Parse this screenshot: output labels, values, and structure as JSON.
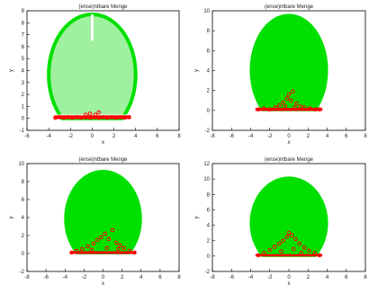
{
  "figure": {
    "panel_count": 4
  },
  "colors": {
    "envelope": "#00e000",
    "points": "#ff0000",
    "hollow_markers": "#ffffff",
    "axes": "#000000"
  },
  "chart_data": [
    {
      "type": "scatter",
      "title": "(ense)ntbare Menge",
      "xlabel": "x",
      "ylabel": "y",
      "xlim": [
        -6,
        8
      ],
      "ylim": [
        -1,
        9
      ],
      "xticks": [
        -6,
        -4,
        -2,
        0,
        2,
        4,
        6,
        8
      ],
      "yticks": [
        -1,
        0,
        1,
        2,
        3,
        4,
        5,
        6,
        7,
        8,
        9
      ],
      "grid": false,
      "envelope": {
        "fill": "hollow-markers",
        "x_min": -4,
        "x_max": 4,
        "y_base": 0,
        "y_max": 8.7
      },
      "notes_visible": "white vertical gap near x=0 from y≈6.5 to 8.7",
      "series": [
        {
          "points": [
            [
              -3.4,
              0.05
            ],
            [
              -3,
              0.1
            ],
            [
              -2.6,
              0.05
            ],
            [
              -2.2,
              0.1
            ],
            [
              -1.8,
              0.05
            ],
            [
              -1.4,
              0.1
            ],
            [
              -1,
              0.05
            ],
            [
              -0.6,
              0.1
            ],
            [
              -0.2,
              0.05
            ],
            [
              0.2,
              0.1
            ],
            [
              0.6,
              0.05
            ],
            [
              1,
              0.1
            ],
            [
              1.4,
              0.05
            ],
            [
              1.8,
              0.1
            ],
            [
              2.2,
              0.05
            ],
            [
              2.6,
              0.1
            ],
            [
              3,
              0.05
            ],
            [
              3.4,
              0.1
            ],
            [
              -0.2,
              0.4
            ],
            [
              0.3,
              0.3
            ],
            [
              0.6,
              0.5
            ],
            [
              -0.6,
              0.3
            ]
          ]
        }
      ]
    },
    {
      "type": "scatter",
      "title": "(ense)ntbare Menge",
      "xlabel": "x",
      "ylabel": "y",
      "xlim": [
        -8,
        8
      ],
      "ylim": [
        -2,
        10
      ],
      "xticks": [
        -8,
        -6,
        -4,
        -2,
        0,
        2,
        4,
        6,
        8
      ],
      "yticks": [
        -2,
        0,
        2,
        4,
        6,
        8,
        10
      ],
      "grid": false,
      "envelope": {
        "fill": "solid",
        "x_min": -4,
        "x_max": 4,
        "y_base": 0,
        "y_max": 9.6
      },
      "series": [
        {
          "points": [
            [
              -3.2,
              0.1
            ],
            [
              -2.6,
              0.2
            ],
            [
              -2,
              0.1
            ],
            [
              -1.4,
              0.3
            ],
            [
              -1,
              0.5
            ],
            [
              -0.6,
              0.8
            ],
            [
              -0.2,
              1.2
            ],
            [
              0,
              1.6
            ],
            [
              0.2,
              1.0
            ],
            [
              0.4,
              1.9
            ],
            [
              0.8,
              0.7
            ],
            [
              1.2,
              0.4
            ],
            [
              1.6,
              0.3
            ],
            [
              2.2,
              0.2
            ],
            [
              2.8,
              0.1
            ],
            [
              3.2,
              0.1
            ],
            [
              -0.4,
              0.4
            ],
            [
              0.6,
              0.3
            ]
          ]
        }
      ]
    },
    {
      "type": "scatter",
      "title": "(ense)ntbare Menge",
      "xlabel": "x",
      "ylabel": "y",
      "xlim": [
        -8,
        8
      ],
      "ylim": [
        -2,
        10
      ],
      "xticks": [
        -8,
        -6,
        -4,
        -2,
        0,
        2,
        4,
        6,
        8
      ],
      "yticks": [
        -2,
        0,
        2,
        4,
        6,
        8,
        10
      ],
      "grid": false,
      "envelope": {
        "fill": "solid",
        "x_min": -4,
        "x_max": 4,
        "y_base": 0,
        "y_max": 9.2
      },
      "series": [
        {
          "points": [
            [
              -3.3,
              0.1
            ],
            [
              -2.8,
              0.3
            ],
            [
              -2.2,
              0.5
            ],
            [
              -1.6,
              0.8
            ],
            [
              -1,
              1.1
            ],
            [
              -0.6,
              1.5
            ],
            [
              -0.2,
              1.8
            ],
            [
              0.2,
              2.2
            ],
            [
              0.6,
              1.6
            ],
            [
              1,
              2.6
            ],
            [
              1.4,
              1.2
            ],
            [
              1.8,
              0.9
            ],
            [
              2.2,
              0.6
            ],
            [
              2.8,
              0.3
            ],
            [
              3.3,
              0.1
            ],
            [
              -1.2,
              0.4
            ],
            [
              0.4,
              0.6
            ],
            [
              1.6,
              0.5
            ]
          ]
        }
      ]
    },
    {
      "type": "scatter",
      "title": "(ense)ntbare Menge",
      "xlabel": "x",
      "ylabel": "y",
      "xlim": [
        -8,
        8
      ],
      "ylim": [
        -2,
        12
      ],
      "xticks": [
        -8,
        -6,
        -4,
        -2,
        0,
        2,
        4,
        6,
        8
      ],
      "yticks": [
        -2,
        0,
        2,
        4,
        6,
        8,
        10,
        12
      ],
      "grid": false,
      "envelope": {
        "fill": "solid",
        "x_min": -4,
        "x_max": 4,
        "y_base": 0,
        "y_max": 10.2
      },
      "series": [
        {
          "points": [
            [
              -3.2,
              0.1
            ],
            [
              -2.6,
              0.4
            ],
            [
              -2,
              0.8
            ],
            [
              -1.5,
              1.2
            ],
            [
              -1,
              1.6
            ],
            [
              -0.6,
              2.0
            ],
            [
              -0.2,
              2.5
            ],
            [
              0,
              3.0
            ],
            [
              0.3,
              2.7
            ],
            [
              0.7,
              2.2
            ],
            [
              1.1,
              1.6
            ],
            [
              1.6,
              1.1
            ],
            [
              2.1,
              0.7
            ],
            [
              2.7,
              0.4
            ],
            [
              3.2,
              0.1
            ],
            [
              -0.8,
              0.6
            ],
            [
              0.5,
              0.9
            ],
            [
              1.3,
              0.4
            ]
          ]
        }
      ]
    }
  ]
}
